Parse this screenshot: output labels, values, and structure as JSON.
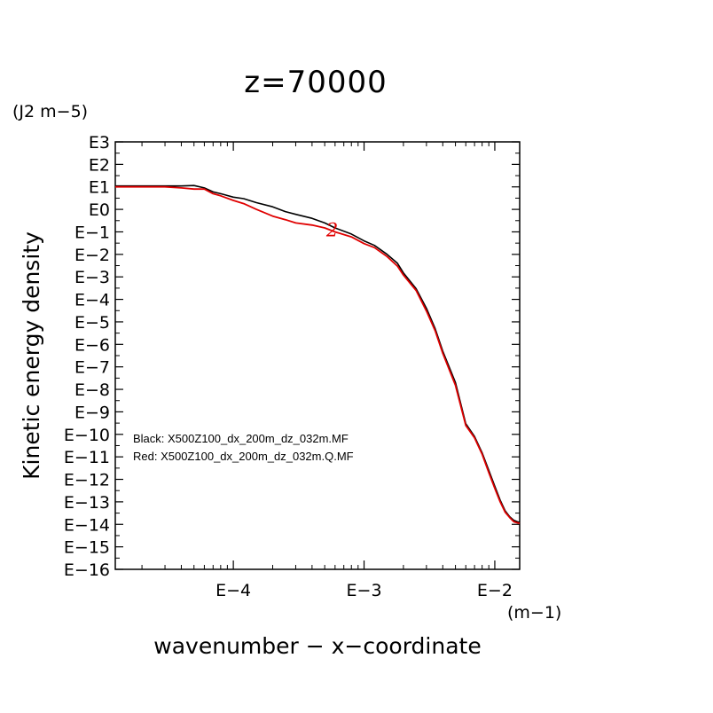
{
  "chart_data": {
    "type": "line",
    "title": "z=70000",
    "xlabel": "wavenumber − x−coordinate",
    "ylabel": "Kinetic energy density",
    "x_unit": "(m−1)",
    "y_unit": "(J2 m−5)",
    "x_scale": "log",
    "y_scale": "log",
    "xlim": [
      1.25e-05,
      0.0155
    ],
    "ylim": [
      1e-16,
      1000
    ],
    "x_ticks": [
      {
        "value": 0.0001,
        "label": "E−4"
      },
      {
        "value": 0.001,
        "label": "E−3"
      },
      {
        "value": 0.01,
        "label": "E−2"
      }
    ],
    "y_ticks": [
      {
        "value": 1000,
        "label": "E3"
      },
      {
        "value": 100,
        "label": "E2"
      },
      {
        "value": 10,
        "label": "E1"
      },
      {
        "value": 1,
        "label": "E0"
      },
      {
        "value": 0.1,
        "label": "E−1"
      },
      {
        "value": 0.01,
        "label": "E−2"
      },
      {
        "value": 0.001,
        "label": "E−3"
      },
      {
        "value": 0.0001,
        "label": "E−4"
      },
      {
        "value": 1e-05,
        "label": "E−5"
      },
      {
        "value": 1e-06,
        "label": "E−6"
      },
      {
        "value": 1e-07,
        "label": "E−7"
      },
      {
        "value": 1e-08,
        "label": "E−8"
      },
      {
        "value": 1e-09,
        "label": "E−9"
      },
      {
        "value": 1e-10,
        "label": "E−10"
      },
      {
        "value": 1e-11,
        "label": "E−11"
      },
      {
        "value": 1e-12,
        "label": "E−12"
      },
      {
        "value": 1e-13,
        "label": "E−13"
      },
      {
        "value": 1e-14,
        "label": "E−14"
      },
      {
        "value": 1e-15,
        "label": "E−15"
      },
      {
        "value": 1e-16,
        "label": "E−16"
      }
    ],
    "annotations": [
      {
        "text": "Black: X500Z100_dx_200m_dz_032m.MF"
      },
      {
        "text": "Red: X500Z100_dx_200m_dz_032m.Q.MF"
      },
      {
        "text": "2",
        "color": "#e00000",
        "x": 0.00057,
        "y": 0.12
      }
    ],
    "grid": false,
    "legend": "none",
    "series": [
      {
        "color": "#000000",
        "x": [
          1.25e-05,
          2e-05,
          3e-05,
          4e-05,
          5e-05,
          6e-05,
          7e-05,
          8e-05,
          0.0001,
          0.00012,
          0.00015,
          0.0002,
          0.00025,
          0.0003,
          0.0004,
          0.0005,
          0.0006,
          0.0008,
          0.001,
          0.0012,
          0.0015,
          0.0018,
          0.002,
          0.0025,
          0.003,
          0.0035,
          0.004,
          0.005,
          0.006,
          0.007,
          0.008,
          0.009,
          0.01,
          0.011,
          0.012,
          0.013,
          0.014,
          0.0155
        ],
        "y": [
          11,
          11,
          11,
          11,
          11.5,
          9,
          6,
          5,
          3.5,
          3,
          2,
          1.3,
          0.8,
          0.6,
          0.4,
          0.25,
          0.15,
          0.08,
          0.04,
          0.025,
          0.01,
          0.004,
          0.0015,
          0.0003,
          4e-05,
          5e-06,
          5e-07,
          2e-08,
          3e-10,
          8e-11,
          1.5e-11,
          2.5e-12,
          5e-13,
          1.2e-13,
          4e-14,
          2.2e-14,
          1.5e-14,
          1.2e-14
        ]
      },
      {
        "color": "#e00000",
        "x": [
          1.25e-05,
          2e-05,
          3e-05,
          4e-05,
          5e-05,
          6e-05,
          7e-05,
          8e-05,
          0.0001,
          0.00012,
          0.00015,
          0.0002,
          0.00025,
          0.0003,
          0.0004,
          0.0005,
          0.0006,
          0.0008,
          0.001,
          0.0012,
          0.0015,
          0.0018,
          0.002,
          0.0025,
          0.003,
          0.0035,
          0.004,
          0.005,
          0.006,
          0.007,
          0.008,
          0.009,
          0.01,
          0.011,
          0.012,
          0.013,
          0.014,
          0.0155
        ],
        "y": [
          10,
          10,
          10,
          9,
          8,
          8,
          5,
          4,
          2.5,
          1.8,
          1,
          0.5,
          0.35,
          0.25,
          0.2,
          0.15,
          0.1,
          0.06,
          0.03,
          0.02,
          0.008,
          0.003,
          0.0012,
          0.00025,
          3e-05,
          4e-06,
          4e-07,
          1.5e-08,
          2.5e-10,
          7e-11,
          1.3e-11,
          2e-12,
          4e-13,
          1e-13,
          3.5e-14,
          2e-14,
          1.3e-14,
          1.1e-14
        ]
      }
    ]
  }
}
